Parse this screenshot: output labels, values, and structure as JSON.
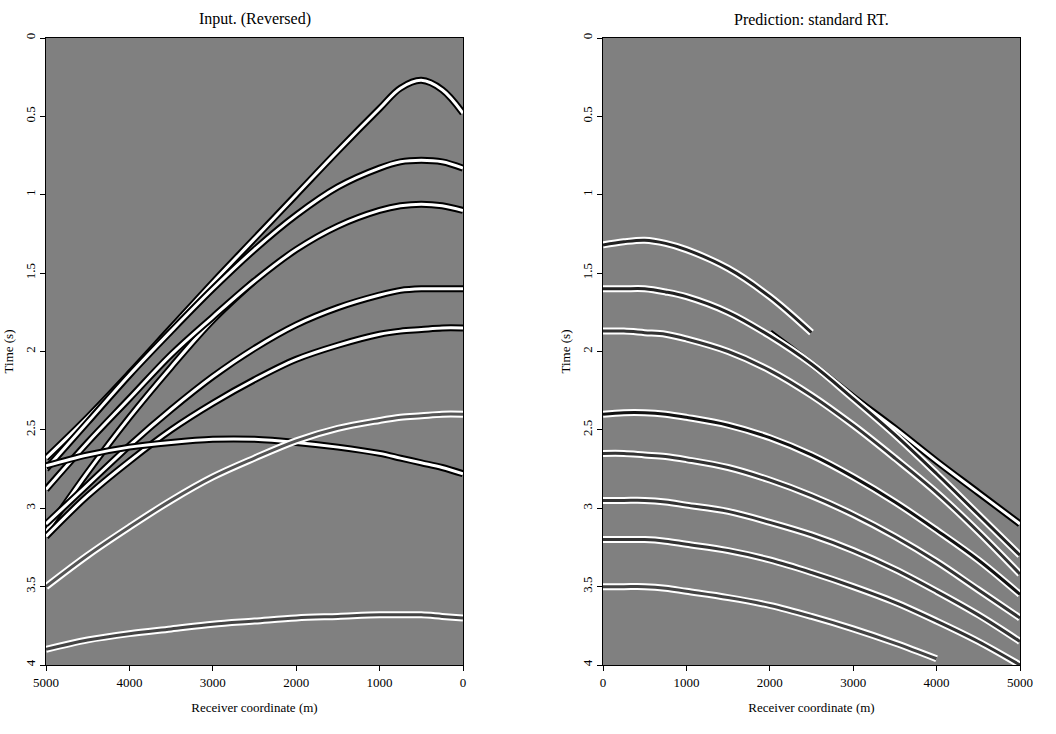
{
  "chart_data": [
    {
      "type": "line",
      "title": "Input. (Reversed)",
      "x_label": "Receiver coordinate (m)",
      "y_label": "Time (s)",
      "xlim": [
        5000,
        0
      ],
      "ylim": [
        4,
        0
      ],
      "xticks": [
        5000,
        4000,
        3000,
        2000,
        1000,
        0
      ],
      "yticks": [
        0,
        0.5,
        1,
        1.5,
        2,
        2.5,
        3,
        3.5,
        4
      ],
      "grid": false,
      "x": [
        0,
        250,
        500,
        750,
        1000,
        1500,
        2000,
        2500,
        3000,
        3500,
        4000,
        4500,
        5000
      ],
      "series": [
        {
          "color": "#ffffff",
          "values": [
            0.48,
            0.33,
            0.27,
            0.32,
            0.45,
            0.72,
            1.0,
            1.28,
            1.56,
            1.85,
            2.14,
            2.42,
            2.68
          ]
        },
        {
          "color": "#ffffff",
          "values": [
            null,
            null,
            null,
            null,
            null,
            null,
            null,
            1.55,
            1.8,
            2.1,
            2.42,
            2.77,
            3.15
          ]
        },
        {
          "color": "#ffffff",
          "values": [
            0.83,
            0.79,
            0.78,
            0.79,
            0.83,
            0.95,
            1.13,
            1.35,
            1.6,
            1.87,
            2.15,
            2.45,
            2.75
          ]
        },
        {
          "color": "#ffffff",
          "values": [
            1.1,
            1.07,
            1.06,
            1.07,
            1.1,
            1.2,
            1.35,
            1.55,
            1.78,
            2.02,
            2.3,
            2.58,
            2.88
          ]
        },
        {
          "color": "#ffffff",
          "values": [
            1.6,
            1.6,
            1.6,
            1.61,
            1.64,
            1.72,
            1.83,
            1.98,
            2.16,
            2.37,
            2.6,
            2.85,
            3.1
          ]
        },
        {
          "color": "#ffffff",
          "values": [
            1.85,
            1.85,
            1.86,
            1.87,
            1.89,
            1.96,
            2.05,
            2.18,
            2.33,
            2.5,
            2.7,
            2.92,
            3.18
          ]
        },
        {
          "color": "#ffffff",
          "values": [
            2.78,
            2.74,
            2.71,
            2.68,
            2.65,
            2.61,
            2.58,
            2.56,
            2.56,
            2.58,
            2.61,
            2.66,
            2.73
          ]
        },
        {
          "color": "#555555",
          "values": [
            2.4,
            2.4,
            2.41,
            2.42,
            2.44,
            2.49,
            2.57,
            2.68,
            2.8,
            2.95,
            3.12,
            3.3,
            3.5
          ]
        },
        {
          "color": "#444444",
          "values": [
            3.7,
            3.69,
            3.68,
            3.68,
            3.68,
            3.69,
            3.7,
            3.72,
            3.74,
            3.77,
            3.8,
            3.84,
            3.9
          ]
        }
      ]
    },
    {
      "type": "line",
      "title": "Prediction: standard RT.",
      "x_label": "Receiver coordinate (m)",
      "y_label": "Time (s)",
      "xlim": [
        0,
        5000
      ],
      "ylim": [
        4,
        0
      ],
      "xticks": [
        0,
        1000,
        2000,
        3000,
        4000,
        5000
      ],
      "yticks": [
        0,
        0.5,
        1,
        1.5,
        2,
        2.5,
        3,
        3.5,
        4
      ],
      "grid": false,
      "x": [
        0,
        250,
        500,
        750,
        1000,
        1500,
        2000,
        2500,
        3000,
        3500,
        4000,
        4500,
        5000
      ],
      "series": [
        {
          "color": "#ffffff",
          "values": [
            null,
            null,
            null,
            null,
            null,
            null,
            1.88,
            2.08,
            2.29,
            2.49,
            2.7,
            2.9,
            3.1
          ]
        },
        {
          "color": "#222222",
          "values": [
            1.32,
            1.3,
            1.29,
            1.31,
            1.35,
            1.47,
            1.65,
            1.88,
            null,
            null,
            null,
            null,
            null
          ]
        },
        {
          "color": "#222222",
          "values": [
            1.6,
            1.6,
            1.6,
            1.62,
            1.65,
            1.75,
            1.9,
            2.08,
            2.3,
            2.53,
            2.78,
            3.04,
            3.3
          ]
        },
        {
          "color": "#333333",
          "values": [
            1.87,
            1.87,
            1.88,
            1.89,
            1.92,
            2.0,
            2.12,
            2.28,
            2.47,
            2.68,
            2.9,
            3.15,
            3.42
          ]
        },
        {
          "color": "#111111",
          "values": [
            2.4,
            2.39,
            2.39,
            2.4,
            2.42,
            2.47,
            2.55,
            2.66,
            2.8,
            2.96,
            3.14,
            3.33,
            3.55
          ]
        },
        {
          "color": "#333333",
          "values": [
            2.65,
            2.65,
            2.66,
            2.67,
            2.69,
            2.74,
            2.82,
            2.92,
            3.04,
            3.18,
            3.34,
            3.52,
            3.7
          ]
        },
        {
          "color": "#333333",
          "values": [
            2.95,
            2.95,
            2.95,
            2.96,
            2.98,
            3.02,
            3.09,
            3.17,
            3.27,
            3.39,
            3.53,
            3.68,
            3.85
          ]
        },
        {
          "color": "#333333",
          "values": [
            3.2,
            3.2,
            3.2,
            3.21,
            3.23,
            3.27,
            3.33,
            3.41,
            3.5,
            3.6,
            3.72,
            3.85,
            4.0
          ]
        },
        {
          "color": "#444444",
          "values": [
            3.5,
            3.5,
            3.5,
            3.51,
            3.53,
            3.57,
            3.62,
            3.69,
            3.77,
            3.86,
            3.96,
            null,
            null
          ]
        }
      ]
    }
  ]
}
